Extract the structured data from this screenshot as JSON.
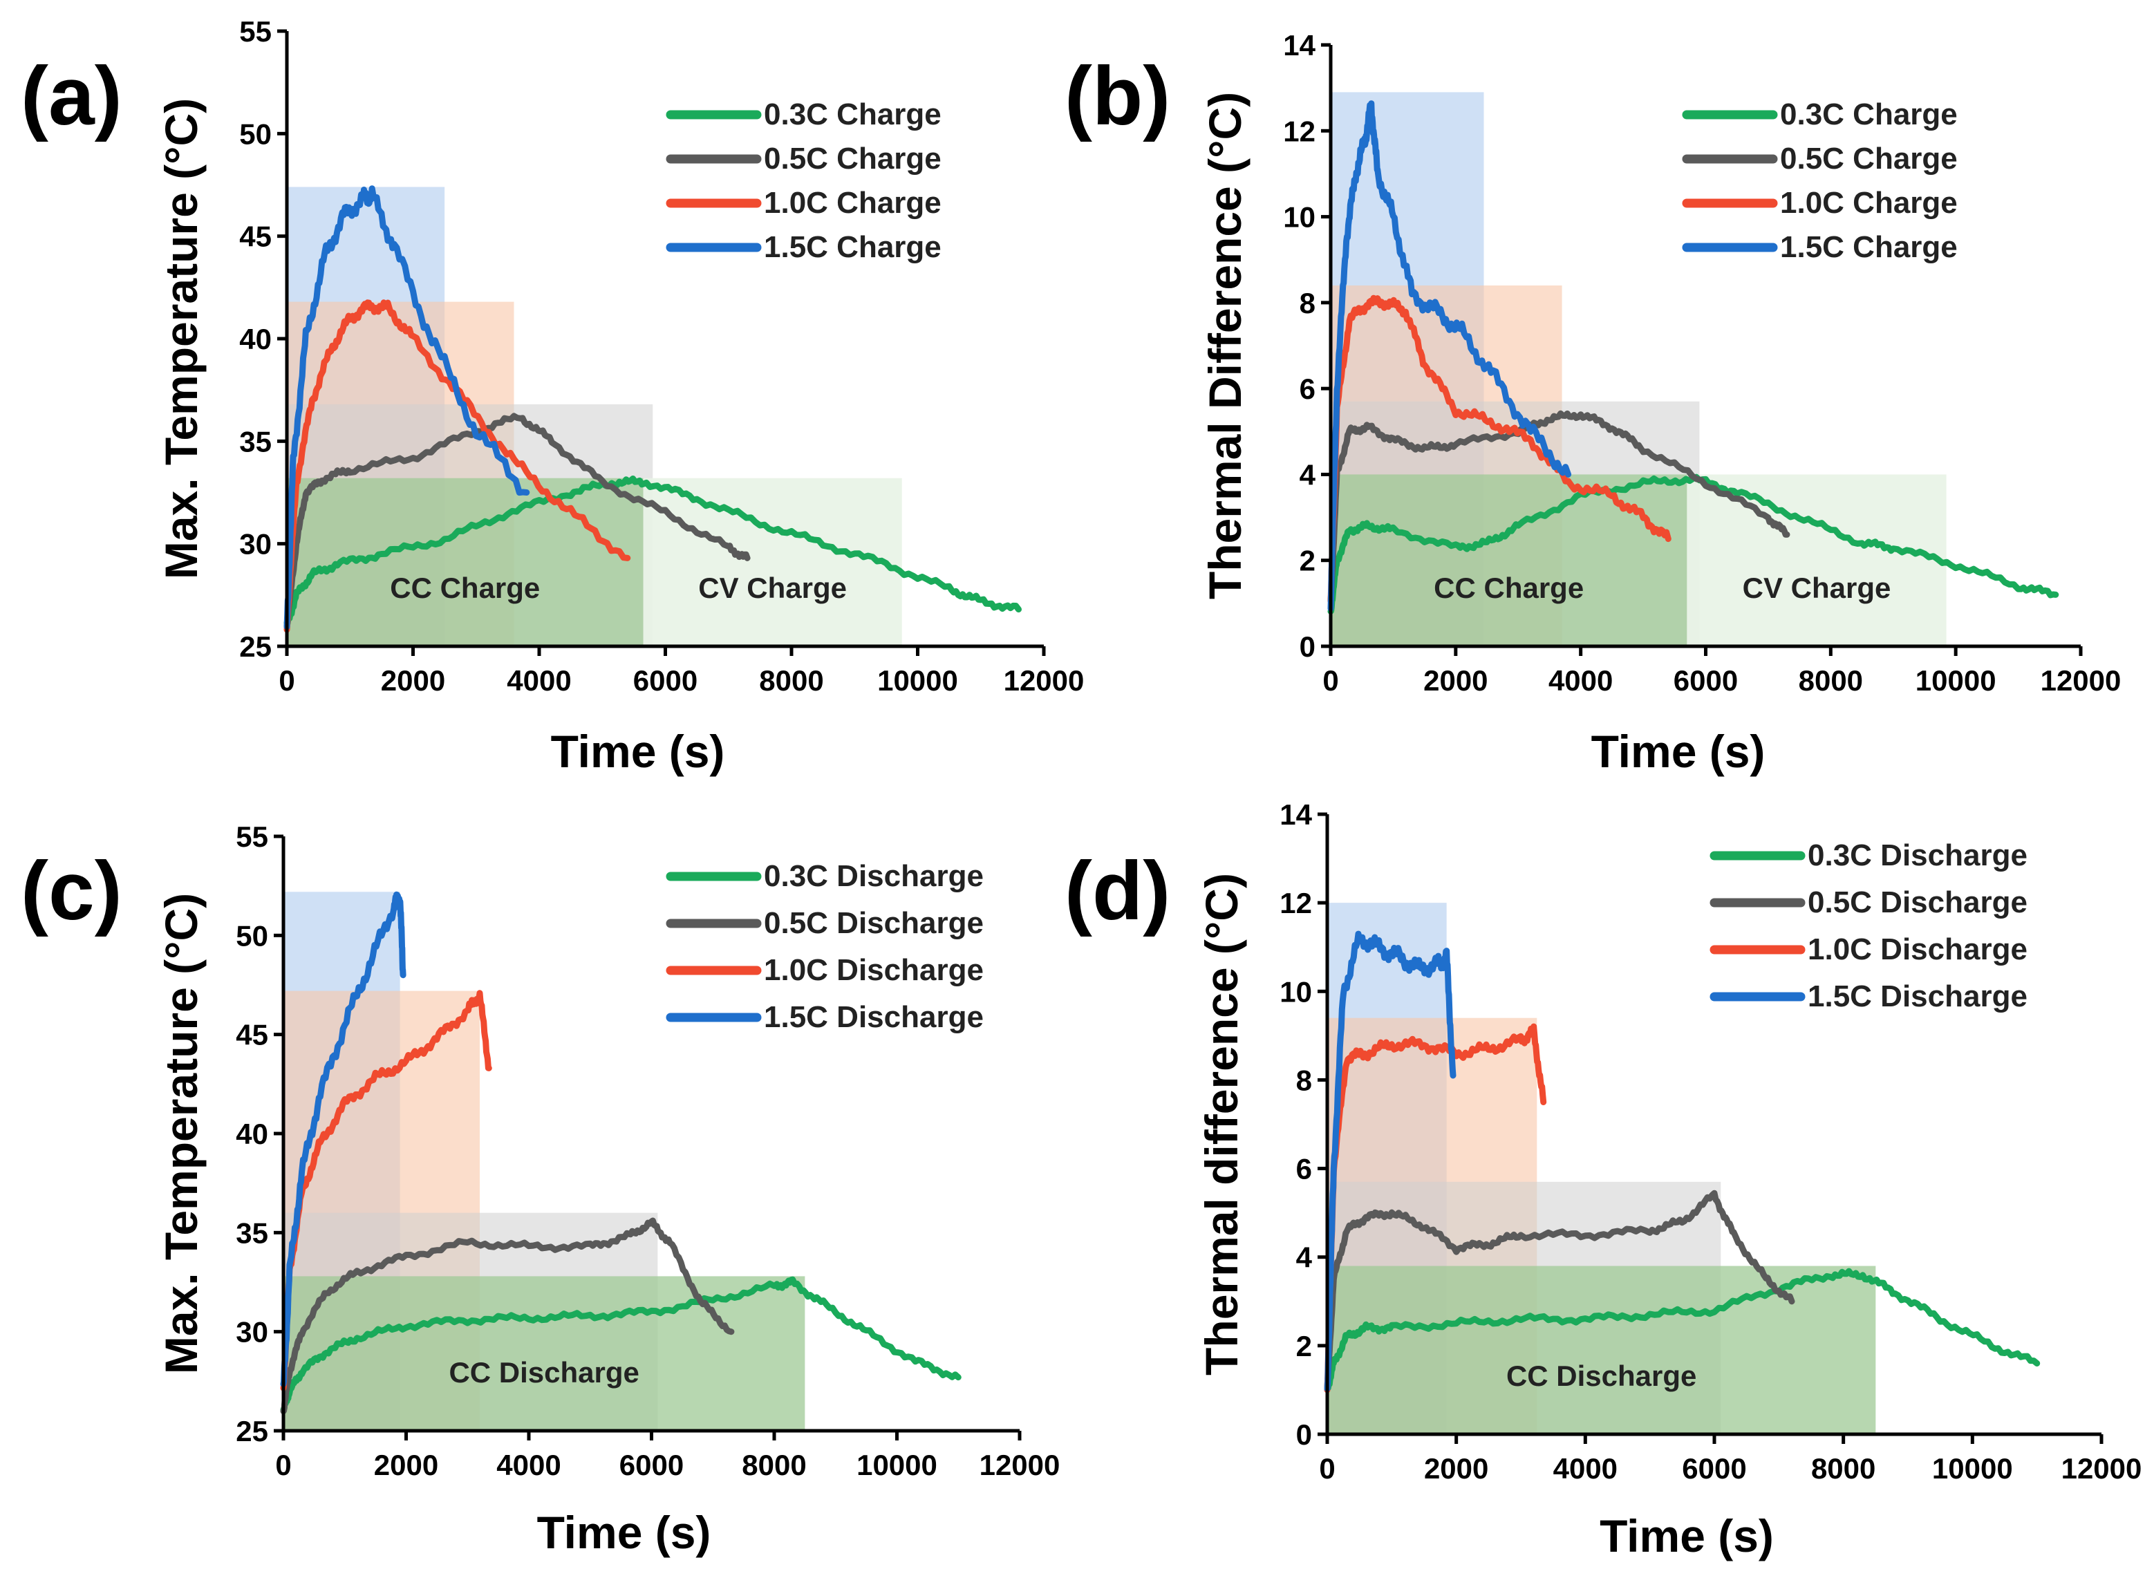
{
  "chart_data": [
    {
      "id": "a",
      "panel_label": "(a)",
      "type": "line",
      "xlabel": "Time (s)",
      "ylabel": "Max. Temperature (°C)",
      "xlim": [
        0,
        12000
      ],
      "ylim": [
        25,
        55
      ],
      "xticks": [
        0,
        2000,
        4000,
        6000,
        8000,
        10000,
        12000
      ],
      "yticks": [
        25,
        30,
        35,
        40,
        45,
        50,
        55
      ],
      "legend_position": "top-right",
      "regions": [
        {
          "label": "",
          "x0": 0,
          "x1": 2500,
          "y1": 47.4,
          "color": "#b5cff0",
          "opacity": 0.65
        },
        {
          "label": "",
          "x0": 0,
          "x1": 3600,
          "y1": 41.8,
          "color": "#f9c7a8",
          "opacity": 0.6
        },
        {
          "label": "",
          "x0": 0,
          "x1": 5800,
          "y1": 36.8,
          "color": "#d0d0d0",
          "opacity": 0.55
        },
        {
          "label": "CC Charge",
          "x0": 0,
          "x1": 5650,
          "y1": 33.2,
          "color": "#9fc996",
          "opacity": 0.75
        },
        {
          "label": "CV Charge",
          "x0": 5650,
          "x1": 9750,
          "y1": 33.2,
          "color": "#e8f3e5",
          "opacity": 0.9
        }
      ],
      "series": [
        {
          "name": "0.3C Charge",
          "color": "#1aaa5a",
          "x": [
            0,
            150,
            400,
            800,
            1500,
            2500,
            3500,
            4500,
            5200,
            5700,
            6500,
            7500,
            8500,
            9500,
            10500,
            11000,
            11600
          ],
          "y": [
            26,
            27.5,
            28.5,
            29,
            29.5,
            30.2,
            31.5,
            32.5,
            33,
            33,
            32.2,
            31,
            30,
            29,
            27.8,
            27.2,
            26.8
          ]
        },
        {
          "name": "0.5C Charge",
          "color": "#5a5a5a",
          "x": [
            0,
            150,
            300,
            600,
            1000,
            2000,
            3000,
            3700,
            4200,
            5000,
            6000,
            7000,
            7300
          ],
          "y": [
            26,
            30,
            32.5,
            33.2,
            33.6,
            34.2,
            35.5,
            36.2,
            35,
            33,
            31.5,
            29.8,
            29.3
          ]
        },
        {
          "name": "1.0C Charge",
          "color": "#f04a2f",
          "x": [
            0,
            150,
            400,
            700,
            1000,
            1300,
            1600,
            2000,
            2800,
            3600,
            4500,
            5400
          ],
          "y": [
            26,
            33,
            37,
            39.5,
            41,
            41.6,
            41.5,
            40,
            37,
            34,
            31.5,
            29.3
          ]
        },
        {
          "name": "1.5C Charge",
          "color": "#1f6fcc",
          "x": [
            0,
            100,
            300,
            600,
            900,
            1200,
            1350,
            1700,
            2300,
            3000,
            3800
          ],
          "y": [
            26,
            34,
            40,
            44,
            46,
            46.8,
            47,
            44.5,
            40,
            35.5,
            32.5
          ]
        }
      ]
    },
    {
      "id": "b",
      "panel_label": "(b)",
      "type": "line",
      "xlabel": "Time (s)",
      "ylabel": "Thermal Difference (°C)",
      "xlim": [
        0,
        12000
      ],
      "ylim": [
        0,
        14
      ],
      "xticks": [
        0,
        2000,
        4000,
        6000,
        8000,
        10000,
        12000
      ],
      "yticks": [
        0,
        2,
        4,
        6,
        8,
        10,
        12,
        14
      ],
      "legend_position": "top-right",
      "regions": [
        {
          "label": "",
          "x0": 0,
          "x1": 2450,
          "y1": 12.9,
          "color": "#b5cff0",
          "opacity": 0.65
        },
        {
          "label": "",
          "x0": 0,
          "x1": 3700,
          "y1": 8.4,
          "color": "#f9c7a8",
          "opacity": 0.6
        },
        {
          "label": "",
          "x0": 0,
          "x1": 5900,
          "y1": 5.7,
          "color": "#d0d0d0",
          "opacity": 0.55
        },
        {
          "label": "CC Charge",
          "x0": 0,
          "x1": 5700,
          "y1": 4.0,
          "color": "#9fc996",
          "opacity": 0.75
        },
        {
          "label": "CV Charge",
          "x0": 5700,
          "x1": 9850,
          "y1": 4.0,
          "color": "#e8f3e5",
          "opacity": 0.9
        }
      ],
      "series": [
        {
          "name": "0.3C Charge",
          "color": "#1aaa5a",
          "x": [
            0,
            100,
            300,
            600,
            1000,
            2000,
            2500,
            3000,
            4000,
            5000,
            5800,
            6500,
            7500,
            8500,
            9000,
            10000,
            11000,
            11600
          ],
          "y": [
            0.8,
            2,
            2.7,
            2.8,
            2.7,
            2.3,
            2.4,
            2.8,
            3.5,
            3.8,
            3.9,
            3.6,
            3,
            2.4,
            2.3,
            1.9,
            1.4,
            1.2
          ]
        },
        {
          "name": "0.5C Charge",
          "color": "#5a5a5a",
          "x": [
            0,
            100,
            300,
            600,
            1000,
            1500,
            2000,
            3000,
            3500,
            4000,
            4500,
            5000,
            6000,
            7000,
            7300
          ],
          "y": [
            1,
            4,
            5,
            5.1,
            4.8,
            4.6,
            4.7,
            5,
            5.3,
            5.4,
            5.1,
            4.6,
            3.8,
            3,
            2.6
          ]
        },
        {
          "name": "1.0C Charge",
          "color": "#f04a2f",
          "x": [
            0,
            100,
            300,
            600,
            900,
            1200,
            1500,
            2000,
            2600,
            3200,
            3800,
            4500,
            5000,
            5400
          ],
          "y": [
            1,
            5.5,
            7.6,
            8,
            8,
            7.8,
            6.6,
            5.5,
            5.2,
            4.8,
            3.8,
            3.5,
            3,
            2.5
          ]
        },
        {
          "name": "1.5C Charge",
          "color": "#1f6fcc",
          "x": [
            0,
            100,
            250,
            400,
            550,
            650,
            750,
            1000,
            1300,
            1700,
            2100,
            2600,
            3200,
            3800
          ],
          "y": [
            1,
            6,
            9.5,
            11,
            11.8,
            12.6,
            11,
            10,
            8.2,
            7.8,
            7.3,
            6.3,
            5,
            4
          ]
        }
      ]
    },
    {
      "id": "c",
      "panel_label": "(c)",
      "type": "line",
      "xlabel": "Time (s)",
      "ylabel": "Max. Temperature (°C)",
      "xlim": [
        0,
        12000
      ],
      "ylim": [
        25,
        55
      ],
      "xticks": [
        0,
        2000,
        4000,
        6000,
        8000,
        10000,
        12000
      ],
      "yticks": [
        25,
        30,
        35,
        40,
        45,
        50,
        55
      ],
      "legend_position": "top-right",
      "regions": [
        {
          "label": "",
          "x0": 0,
          "x1": 1900,
          "y1": 52.2,
          "color": "#b5cff0",
          "opacity": 0.65
        },
        {
          "label": "",
          "x0": 0,
          "x1": 3200,
          "y1": 47.2,
          "color": "#f9c7a8",
          "opacity": 0.6
        },
        {
          "label": "",
          "x0": 0,
          "x1": 6100,
          "y1": 36.0,
          "color": "#d0d0d0",
          "opacity": 0.55
        },
        {
          "label": "CC Discharge",
          "x0": 0,
          "x1": 8500,
          "y1": 32.8,
          "color": "#9fc996",
          "opacity": 0.75
        }
      ],
      "series": [
        {
          "name": "0.3C Discharge",
          "color": "#1aaa5a",
          "x": [
            0,
            100,
            300,
            700,
            1200,
            2000,
            3000,
            4000,
            5000,
            6000,
            7000,
            8000,
            8300,
            8800,
            9500,
            10300,
            11000
          ],
          "y": [
            26,
            27,
            28,
            29,
            29.7,
            30.3,
            30.6,
            30.7,
            30.8,
            31,
            31.6,
            32.3,
            32.5,
            31.4,
            30,
            28.5,
            27.7
          ]
        },
        {
          "name": "0.5C Discharge",
          "color": "#5a5a5a",
          "x": [
            0,
            100,
            300,
            700,
            1200,
            2000,
            3000,
            4000,
            5000,
            5600,
            6000,
            6300,
            6800,
            7300
          ],
          "y": [
            26,
            28,
            30,
            32,
            33,
            33.8,
            34.5,
            34.3,
            34.3,
            34.8,
            35.5,
            34.5,
            31.5,
            30
          ]
        },
        {
          "name": "1.0C Discharge",
          "color": "#f04a2f",
          "x": [
            0,
            100,
            300,
            600,
            1000,
            1500,
            2000,
            2500,
            3000,
            3200,
            3350
          ],
          "y": [
            27,
            33,
            37,
            39.5,
            41.5,
            42.8,
            43.6,
            44.8,
            46.2,
            47,
            43.3
          ]
        },
        {
          "name": "1.5C Discharge",
          "color": "#1f6fcc",
          "x": [
            0,
            100,
            300,
            600,
            1000,
            1400,
            1800,
            1900,
            1950
          ],
          "y": [
            27,
            33,
            38,
            42,
            45.5,
            48.5,
            51.5,
            52,
            48
          ]
        }
      ]
    },
    {
      "id": "d",
      "panel_label": "(d)",
      "type": "line",
      "xlabel": "Time (s)",
      "ylabel": "Thermal difference (°C)",
      "xlim": [
        0,
        12000
      ],
      "ylim": [
        0,
        14
      ],
      "xticks": [
        0,
        2000,
        4000,
        6000,
        8000,
        10000,
        12000
      ],
      "yticks": [
        0,
        2,
        4,
        6,
        8,
        10,
        12,
        14
      ],
      "legend_position": "top-right",
      "regions": [
        {
          "label": "",
          "x0": 0,
          "x1": 1850,
          "y1": 12.0,
          "color": "#b5cff0",
          "opacity": 0.65
        },
        {
          "label": "",
          "x0": 0,
          "x1": 3250,
          "y1": 9.4,
          "color": "#f9c7a8",
          "opacity": 0.6
        },
        {
          "label": "",
          "x0": 0,
          "x1": 6100,
          "y1": 5.7,
          "color": "#d0d0d0",
          "opacity": 0.55
        },
        {
          "label": "CC Discharge",
          "x0": 0,
          "x1": 8500,
          "y1": 3.8,
          "color": "#9fc996",
          "opacity": 0.75
        }
      ],
      "series": [
        {
          "name": "0.3C Discharge",
          "color": "#1aaa5a",
          "x": [
            0,
            100,
            300,
            600,
            1000,
            2000,
            3000,
            4000,
            5000,
            6000,
            7000,
            7800,
            8300,
            8800,
            9500,
            10300,
            11000
          ],
          "y": [
            1,
            1.6,
            2.2,
            2.4,
            2.4,
            2.5,
            2.6,
            2.6,
            2.7,
            2.8,
            3.3,
            3.6,
            3.6,
            3.2,
            2.6,
            2,
            1.6
          ]
        },
        {
          "name": "0.5C Discharge",
          "color": "#5a5a5a",
          "x": [
            0,
            100,
            300,
            600,
            1000,
            1500,
            2000,
            2500,
            3000,
            4000,
            5000,
            5500,
            6000,
            6300,
            6800,
            7200
          ],
          "y": [
            1,
            3.5,
            4.6,
            4.9,
            5,
            4.7,
            4.2,
            4.3,
            4.5,
            4.5,
            4.6,
            4.8,
            5.4,
            4.5,
            3.5,
            3
          ]
        },
        {
          "name": "1.0C Discharge",
          "color": "#f04a2f",
          "x": [
            0,
            100,
            300,
            600,
            1000,
            1500,
            2000,
            2500,
            3000,
            3200,
            3350
          ],
          "y": [
            1,
            6,
            8.5,
            8.6,
            8.8,
            8.8,
            8.6,
            8.7,
            8.9,
            9.1,
            7.5
          ]
        },
        {
          "name": "1.5C Discharge",
          "color": "#1f6fcc",
          "x": [
            0,
            100,
            250,
            500,
            800,
            1100,
            1400,
            1700,
            1850,
            1950
          ],
          "y": [
            1,
            6,
            10,
            11.2,
            11,
            10.8,
            10.5,
            10.6,
            10.8,
            8.1
          ]
        }
      ]
    }
  ]
}
